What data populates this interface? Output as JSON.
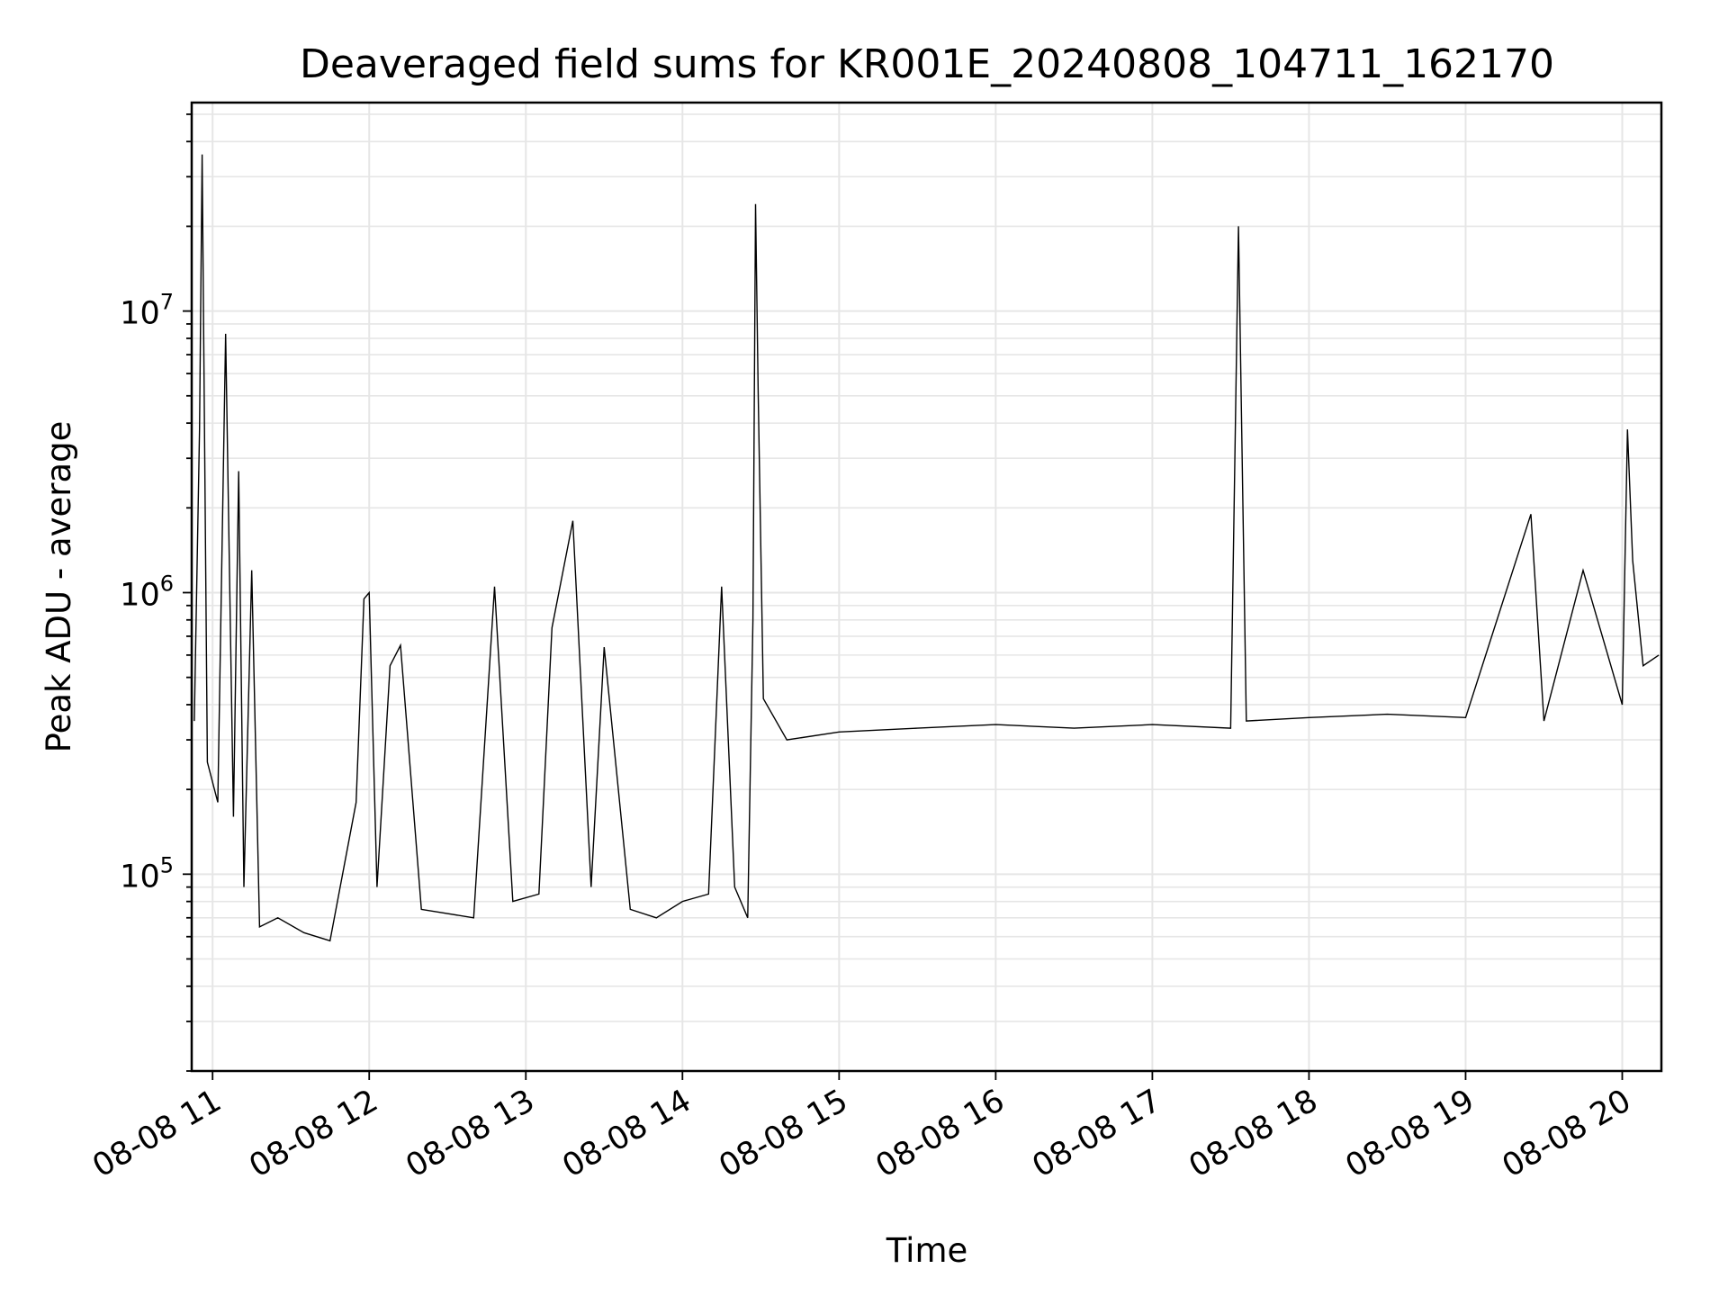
{
  "chart_data": {
    "type": "line",
    "title": "Deaveraged field sums for KR001E_20240808_104711_162170",
    "xlabel": "Time",
    "ylabel": "Peak ADU - average",
    "yscale": "log",
    "ylim": [
      20000,
      55000000
    ],
    "xlim": [
      "2024-08-08 10:52",
      "2024-08-08 20:15"
    ],
    "grid": true,
    "line_color": "#000000",
    "grid_color": "#e6e6e6",
    "x_ticks": [
      {
        "t": "2024-08-08 11:00",
        "label": "08-08 11"
      },
      {
        "t": "2024-08-08 12:00",
        "label": "08-08 12"
      },
      {
        "t": "2024-08-08 13:00",
        "label": "08-08 13"
      },
      {
        "t": "2024-08-08 14:00",
        "label": "08-08 14"
      },
      {
        "t": "2024-08-08 15:00",
        "label": "08-08 15"
      },
      {
        "t": "2024-08-08 16:00",
        "label": "08-08 16"
      },
      {
        "t": "2024-08-08 17:00",
        "label": "08-08 17"
      },
      {
        "t": "2024-08-08 18:00",
        "label": "08-08 18"
      },
      {
        "t": "2024-08-08 19:00",
        "label": "08-08 19"
      },
      {
        "t": "2024-08-08 20:00",
        "label": "08-08 20"
      }
    ],
    "y_ticks": [
      {
        "value": 100000,
        "base": "10",
        "exp": "5"
      },
      {
        "value": 1000000,
        "base": "10",
        "exp": "6"
      },
      {
        "value": 10000000,
        "base": "10",
        "exp": "7"
      }
    ],
    "series": [
      {
        "points": [
          [
            "2024-08-08 10:53",
            350000
          ],
          [
            "2024-08-08 10:55",
            3800000
          ],
          [
            "2024-08-08 10:56",
            36000000
          ],
          [
            "2024-08-08 10:58",
            250000
          ],
          [
            "2024-08-08 11:02",
            180000
          ],
          [
            "2024-08-08 11:05",
            8300000
          ],
          [
            "2024-08-08 11:08",
            160000
          ],
          [
            "2024-08-08 11:10",
            2700000
          ],
          [
            "2024-08-08 11:12",
            90000
          ],
          [
            "2024-08-08 11:15",
            1200000
          ],
          [
            "2024-08-08 11:18",
            65000
          ],
          [
            "2024-08-08 11:25",
            70000
          ],
          [
            "2024-08-08 11:35",
            62000
          ],
          [
            "2024-08-08 11:45",
            58000
          ],
          [
            "2024-08-08 11:55",
            180000
          ],
          [
            "2024-08-08 11:58",
            950000
          ],
          [
            "2024-08-08 12:00",
            1000000
          ],
          [
            "2024-08-08 12:03",
            90000
          ],
          [
            "2024-08-08 12:08",
            550000
          ],
          [
            "2024-08-08 12:12",
            650000
          ],
          [
            "2024-08-08 12:20",
            75000
          ],
          [
            "2024-08-08 12:40",
            70000
          ],
          [
            "2024-08-08 12:48",
            1050000
          ],
          [
            "2024-08-08 12:55",
            80000
          ],
          [
            "2024-08-08 13:05",
            85000
          ],
          [
            "2024-08-08 13:10",
            750000
          ],
          [
            "2024-08-08 13:18",
            1800000
          ],
          [
            "2024-08-08 13:25",
            90000
          ],
          [
            "2024-08-08 13:30",
            640000
          ],
          [
            "2024-08-08 13:40",
            75000
          ],
          [
            "2024-08-08 13:50",
            70000
          ],
          [
            "2024-08-08 14:00",
            80000
          ],
          [
            "2024-08-08 14:10",
            85000
          ],
          [
            "2024-08-08 14:15",
            1050000
          ],
          [
            "2024-08-08 14:20",
            90000
          ],
          [
            "2024-08-08 14:25",
            70000
          ],
          [
            "2024-08-08 14:27",
            800000
          ],
          [
            "2024-08-08 14:28",
            24000000
          ],
          [
            "2024-08-08 14:29",
            5200000
          ],
          [
            "2024-08-08 14:31",
            420000
          ],
          [
            "2024-08-08 14:40",
            300000
          ],
          [
            "2024-08-08 15:00",
            320000
          ],
          [
            "2024-08-08 15:30",
            330000
          ],
          [
            "2024-08-08 16:00",
            340000
          ],
          [
            "2024-08-08 16:30",
            330000
          ],
          [
            "2024-08-08 17:00",
            340000
          ],
          [
            "2024-08-08 17:30",
            330000
          ],
          [
            "2024-08-08 17:33",
            20000000
          ],
          [
            "2024-08-08 17:36",
            350000
          ],
          [
            "2024-08-08 18:00",
            360000
          ],
          [
            "2024-08-08 18:30",
            370000
          ],
          [
            "2024-08-08 19:00",
            360000
          ],
          [
            "2024-08-08 19:25",
            1900000
          ],
          [
            "2024-08-08 19:30",
            350000
          ],
          [
            "2024-08-08 19:45",
            1200000
          ],
          [
            "2024-08-08 20:00",
            400000
          ],
          [
            "2024-08-08 20:02",
            3800000
          ],
          [
            "2024-08-08 20:04",
            1300000
          ],
          [
            "2024-08-08 20:08",
            550000
          ],
          [
            "2024-08-08 20:14",
            600000
          ]
        ]
      }
    ]
  }
}
